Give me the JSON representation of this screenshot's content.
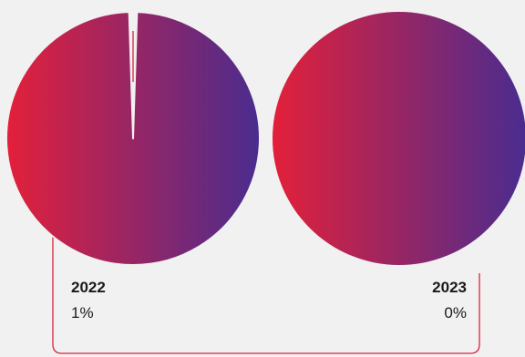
{
  "chart_data": {
    "type": "pie",
    "colors": {
      "gradient_start": "#e3203a",
      "gradient_end": "#4a2c8f",
      "frame": "#d9233f"
    },
    "pies": [
      {
        "label": "2022",
        "value_label": "1%",
        "highlight_fraction": 0.01
      },
      {
        "label": "2023",
        "value_label": "0%",
        "highlight_fraction": 0.0
      }
    ]
  }
}
